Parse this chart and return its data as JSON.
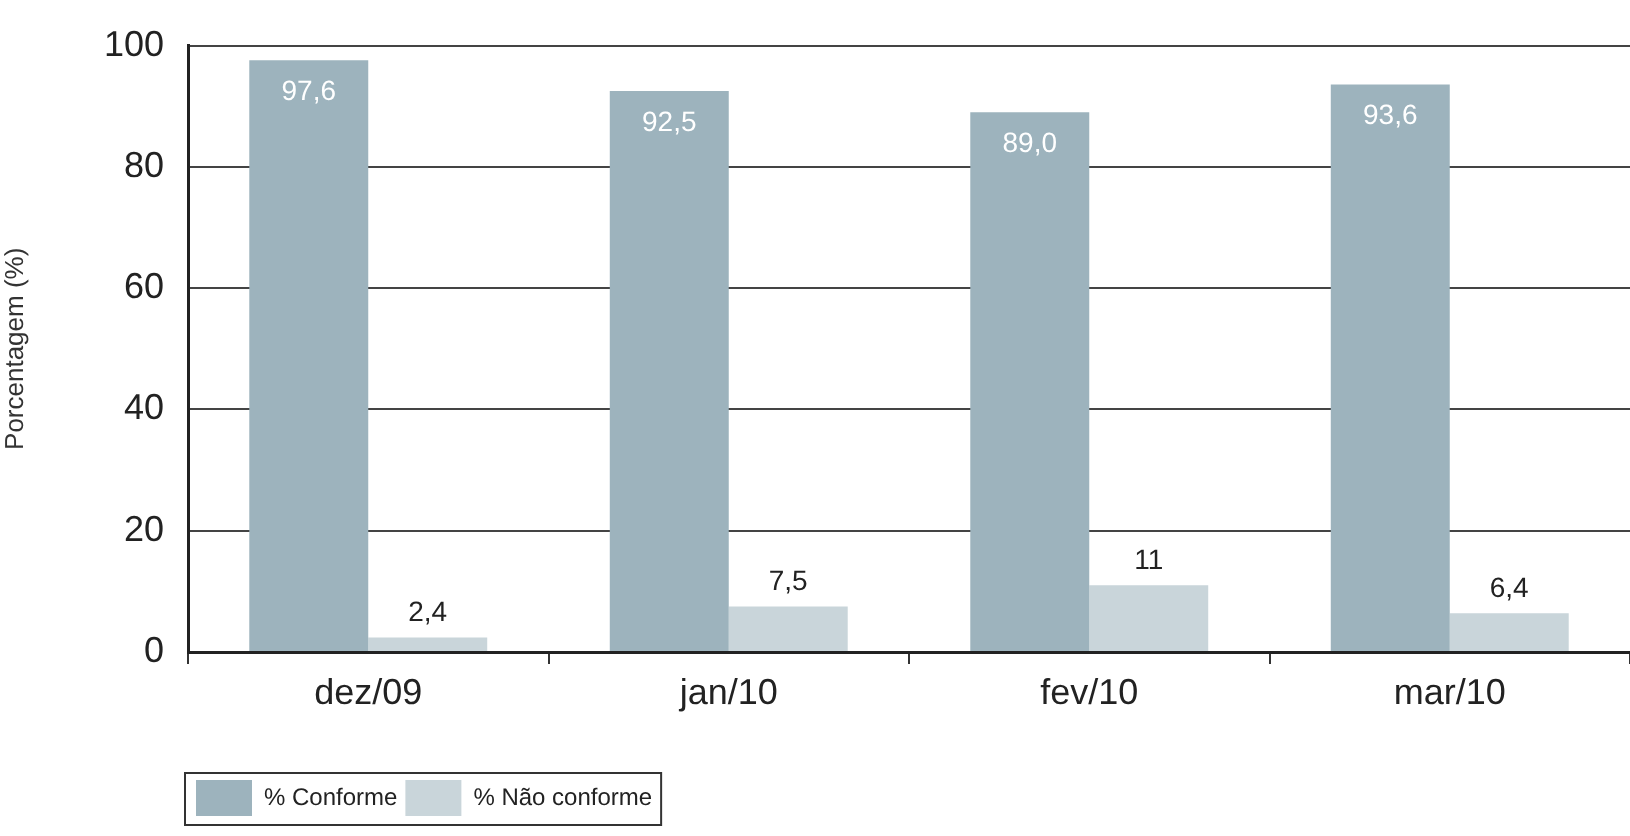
{
  "chart_data": {
    "type": "bar",
    "ylabel": "Porcentagem (%)",
    "categories": [
      "dez/09",
      "jan/10",
      "fev/10",
      "mar/10"
    ],
    "series": [
      {
        "name": "% Conforme",
        "color": "#9db3bd",
        "values": [
          97.6,
          92.5,
          89.0,
          93.6
        ],
        "value_labels": [
          "97,6",
          "92,5",
          "89,0",
          "93,6"
        ]
      },
      {
        "name": "% Não conforme",
        "color": "#c9d5da",
        "values": [
          2.4,
          7.5,
          11,
          6.4
        ],
        "value_labels": [
          "2,4",
          "7,5",
          "11",
          "6,4"
        ]
      }
    ],
    "ylim": [
      0,
      100
    ],
    "yticks": [
      0,
      20,
      40,
      60,
      80,
      100
    ],
    "grid": "y",
    "legend": "bottom left"
  }
}
